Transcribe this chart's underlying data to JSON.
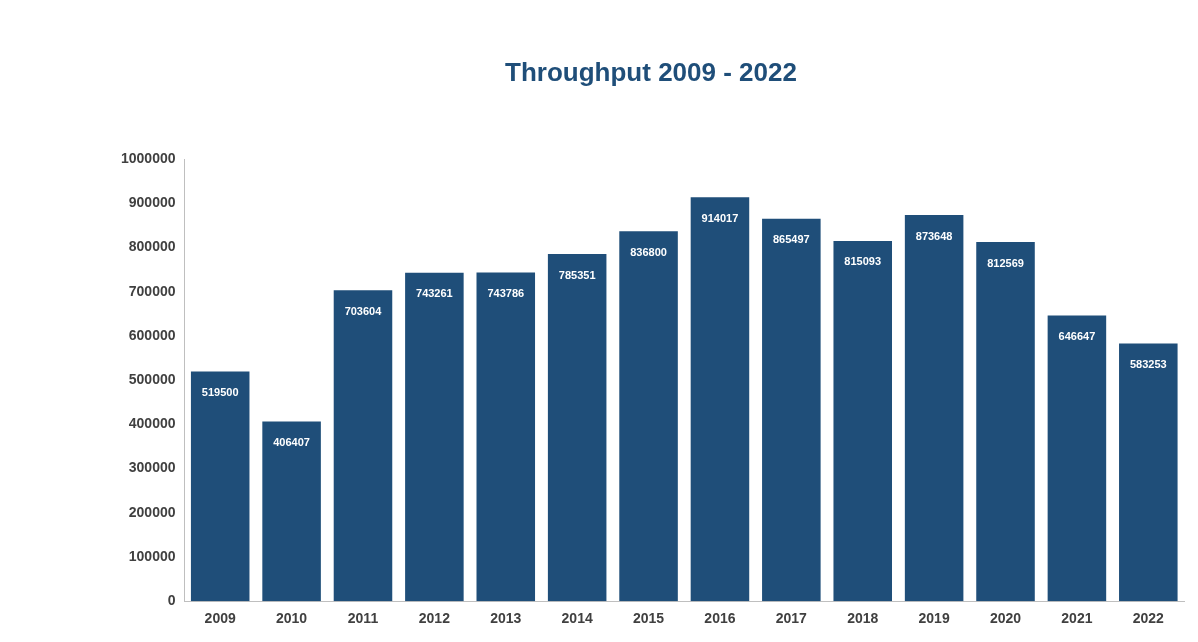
{
  "chart_data": {
    "type": "bar",
    "title": "Throughput 2009 - 2022",
    "categories": [
      "2009",
      "2010",
      "2011",
      "2012",
      "2013",
      "2014",
      "2015",
      "2016",
      "2017",
      "2018",
      "2019",
      "2020",
      "2021",
      "2022"
    ],
    "values": [
      519500,
      406407,
      703604,
      743261,
      743786,
      785351,
      836800,
      914017,
      865497,
      815093,
      873648,
      812569,
      646647,
      583253
    ],
    "color": "#1f4e79",
    "ylim": [
      0,
      1000000
    ],
    "yticks": [
      0,
      100000,
      200000,
      300000,
      400000,
      500000,
      600000,
      700000,
      800000,
      900000,
      1000000
    ],
    "grid": false,
    "legend": false,
    "data_labels": true
  }
}
